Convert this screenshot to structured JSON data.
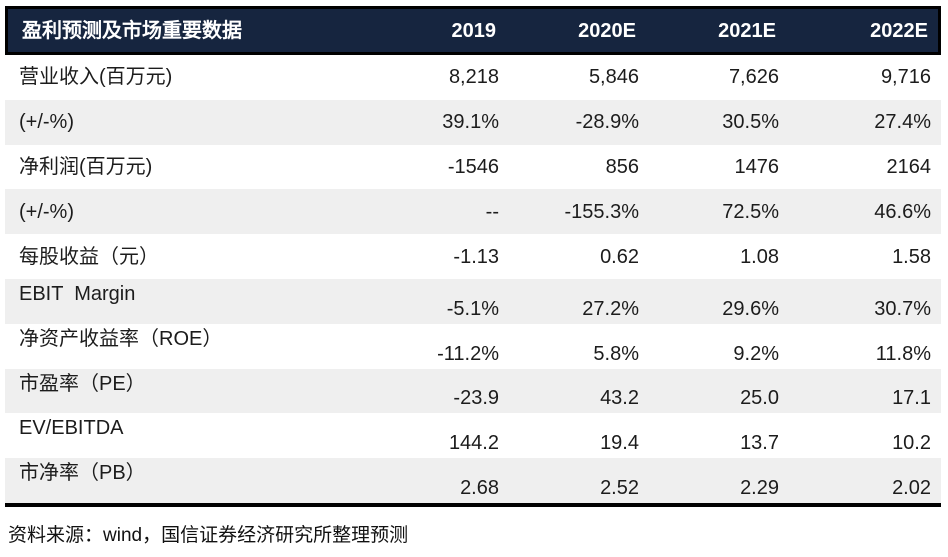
{
  "chart_data": {
    "type": "table",
    "title": "盈利预测及市场重要数据",
    "year_columns": [
      "2019",
      "2020E",
      "2021E",
      "2022E"
    ],
    "rows": [
      {
        "label": "营业收入(百万元)",
        "values": [
          "8,218",
          "5,846",
          "7,626",
          "9,716"
        ]
      },
      {
        "label": "(+/-%)",
        "values": [
          "39.1%",
          "-28.9%",
          "30.5%",
          "27.4%"
        ]
      },
      {
        "label": "净利润(百万元)",
        "values": [
          "-1546",
          "856",
          "1476",
          "2164"
        ]
      },
      {
        "label": "(+/-%)",
        "values": [
          "--",
          "-155.3%",
          "72.5%",
          "46.6%"
        ]
      },
      {
        "label": "每股收益（元）",
        "values": [
          "-1.13",
          "0.62",
          "1.08",
          "1.58"
        ]
      },
      {
        "label": "EBIT  Margin",
        "values": [
          "-5.1%",
          "27.2%",
          "29.6%",
          "30.7%"
        ]
      },
      {
        "label": "净资产收益率（ROE）",
        "values": [
          "-11.2%",
          "5.8%",
          "9.2%",
          "11.8%"
        ]
      },
      {
        "label": "市盈率（PE）",
        "values": [
          "-23.9",
          "43.2",
          "25.0",
          "17.1"
        ]
      },
      {
        "label": "EV/EBITDA",
        "values": [
          "144.2",
          "19.4",
          "13.7",
          "10.2"
        ]
      },
      {
        "label": "市净率（PB）",
        "values": [
          "2.68",
          "2.52",
          "2.29",
          "2.02"
        ]
      }
    ],
    "source_note": "资料来源：wind，国信证券经济研究所整理预测",
    "layout": {
      "stripe_rows": [
        1,
        3,
        5,
        7,
        9
      ],
      "staggered_rows": [
        5,
        6,
        7,
        8,
        9
      ]
    }
  },
  "colors": {
    "header_bg": "#16253f",
    "header_text": "#ffffff",
    "stripe_bg": "#efefef",
    "border": "#000000",
    "body_text": "#1c1c1c"
  }
}
